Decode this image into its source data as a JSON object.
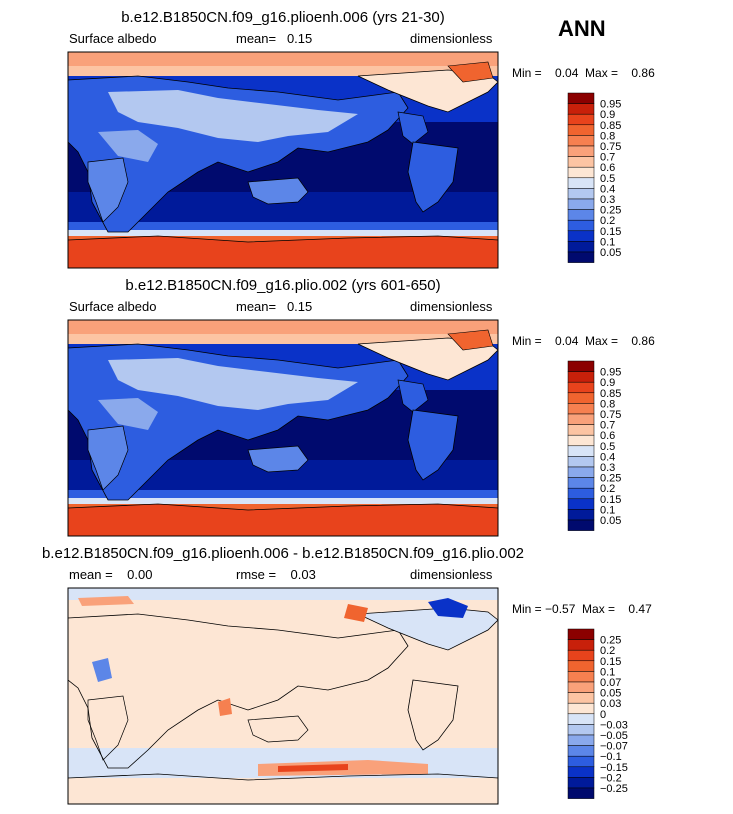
{
  "season_label": "ANN",
  "panels": [
    {
      "title": "b.e12.B1850CN.f09_g16.plioenh.006 (yrs 21-30)",
      "left_label": "Surface albedo",
      "center_label": "mean=   0.15",
      "right_label": "dimensionless",
      "minmax": "Min =    0.04  Max =    0.86"
    },
    {
      "title": "b.e12.B1850CN.f09_g16.plio.002 (yrs 601-650)",
      "left_label": "Surface albedo",
      "center_label": "mean=   0.15",
      "right_label": "dimensionless",
      "minmax": "Min =    0.04  Max =    0.86"
    },
    {
      "title": "b.e12.B1850CN.f09_g16.plioenh.006 - b.e12.B1850CN.f09_g16.plio.002",
      "left_label": "mean =    0.00",
      "center_label": "rmse =    0.03",
      "right_label": "dimensionless",
      "minmax": "Min = −0.57  Max =    0.47"
    }
  ],
  "colorbars": [
    {
      "labels": [
        "0.95",
        "0.9",
        "0.85",
        "0.8",
        "0.75",
        "0.7",
        "0.6",
        "0.5",
        "0.4",
        "0.3",
        "0.25",
        "0.2",
        "0.15",
        "0.1",
        "0.05"
      ],
      "colors": [
        "#8b0000",
        "#c8200a",
        "#e8431c",
        "#f0642f",
        "#f68050",
        "#f9a17a",
        "#fcc4a3",
        "#fde6d4",
        "#d8e4f7",
        "#b3c8f0",
        "#8aa9ec",
        "#5c86e8",
        "#2d5de0",
        "#0a32c8",
        "#001a9a",
        "#000a6e"
      ]
    },
    {
      "labels": [
        "0.95",
        "0.9",
        "0.85",
        "0.8",
        "0.75",
        "0.7",
        "0.6",
        "0.5",
        "0.4",
        "0.3",
        "0.25",
        "0.2",
        "0.15",
        "0.1",
        "0.05"
      ],
      "colors": [
        "#8b0000",
        "#c8200a",
        "#e8431c",
        "#f0642f",
        "#f68050",
        "#f9a17a",
        "#fcc4a3",
        "#fde6d4",
        "#d8e4f7",
        "#b3c8f0",
        "#8aa9ec",
        "#5c86e8",
        "#2d5de0",
        "#0a32c8",
        "#001a9a",
        "#000a6e"
      ]
    },
    {
      "labels": [
        "0.25",
        "0.2",
        "0.15",
        "0.1",
        "0.07",
        "0.05",
        "0.03",
        "0",
        "−0.03",
        "−0.05",
        "−0.07",
        "−0.1",
        "−0.15",
        "−0.2",
        "−0.25"
      ],
      "colors": [
        "#8b0000",
        "#c8200a",
        "#e8431c",
        "#f0642f",
        "#f68050",
        "#f9a17a",
        "#fcc4a3",
        "#fde6d4",
        "#d8e4f7",
        "#b3c8f0",
        "#8aa9ec",
        "#5c86e8",
        "#2d5de0",
        "#0a32c8",
        "#001a9a",
        "#000a6e"
      ]
    }
  ],
  "chart_data": [
    {
      "type": "heatmap",
      "title": "b.e12.B1850CN.f09_g16.plioenh.006 (yrs 21-30)",
      "variable": "Surface albedo",
      "units": "dimensionless",
      "mean": 0.15,
      "min": 0.04,
      "max": 0.86,
      "contour_levels": [
        0.05,
        0.1,
        0.15,
        0.2,
        0.25,
        0.3,
        0.4,
        0.5,
        0.6,
        0.7,
        0.75,
        0.8,
        0.85,
        0.9,
        0.95
      ]
    },
    {
      "type": "heatmap",
      "title": "b.e12.B1850CN.f09_g16.plio.002 (yrs 601-650)",
      "variable": "Surface albedo",
      "units": "dimensionless",
      "mean": 0.15,
      "min": 0.04,
      "max": 0.86,
      "contour_levels": [
        0.05,
        0.1,
        0.15,
        0.2,
        0.25,
        0.3,
        0.4,
        0.5,
        0.6,
        0.7,
        0.75,
        0.8,
        0.85,
        0.9,
        0.95
      ]
    },
    {
      "type": "heatmap",
      "title": "b.e12.B1850CN.f09_g16.plioenh.006 - b.e12.B1850CN.f09_g16.plio.002",
      "units": "dimensionless",
      "mean": 0.0,
      "rmse": 0.03,
      "min": -0.57,
      "max": 0.47,
      "contour_levels": [
        -0.25,
        -0.2,
        -0.15,
        -0.1,
        -0.07,
        -0.05,
        -0.03,
        0,
        0.03,
        0.05,
        0.07,
        0.1,
        0.15,
        0.2,
        0.25
      ]
    }
  ]
}
